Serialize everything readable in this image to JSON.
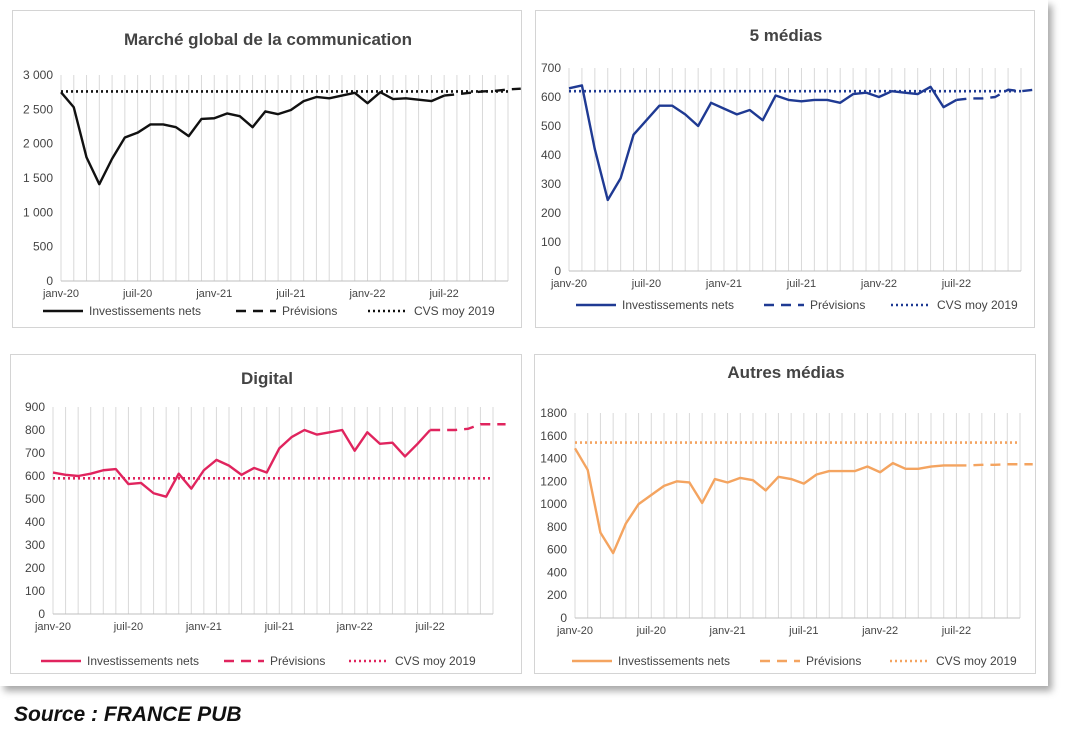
{
  "source": "Source : FRANCE PUB",
  "chart_data": [
    {
      "type": "line",
      "title": "Marché global de la communication",
      "color": "#111111",
      "x_labels": [
        "janv-20",
        "juil-20",
        "janv-21",
        "juil-21",
        "janv-22",
        "juil-22"
      ],
      "y_ticks": [
        "0",
        "500",
        "1 000",
        "1 500",
        "2 000",
        "2 500",
        "3 000"
      ],
      "ylim": [
        0,
        3000
      ],
      "n_months": 36,
      "legend": [
        "Investissements nets",
        "Prévisions",
        "CVS moy 2019"
      ],
      "series": [
        {
          "name": "Investissements nets",
          "style": "solid",
          "values": [
            2750,
            2530,
            1800,
            1410,
            1780,
            2090,
            2160,
            2280,
            2280,
            2240,
            2110,
            2360,
            2370,
            2440,
            2400,
            2240,
            2470,
            2430,
            2490,
            2620,
            2680,
            2660,
            2700,
            2740,
            2590,
            2750,
            2650,
            2660,
            2640,
            2620,
            2700
          ]
        },
        {
          "name": "Prévisions",
          "style": "dashed",
          "start": 30,
          "values": [
            2700,
            2720,
            2740,
            2760,
            2770,
            2790,
            2800
          ]
        },
        {
          "name": "CVS moy 2019",
          "style": "dotted",
          "constant": 2760
        }
      ]
    },
    {
      "type": "line",
      "title": "5 médias",
      "color": "#1f3a93",
      "x_labels": [
        "janv-20",
        "juil-20",
        "janv-21",
        "juil-21",
        "janv-22",
        "juil-22"
      ],
      "y_ticks": [
        "0",
        "100",
        "200",
        "300",
        "400",
        "500",
        "600",
        "700"
      ],
      "ylim": [
        0,
        700
      ],
      "n_months": 36,
      "legend": [
        "Investissements nets",
        "Prévisions",
        "CVS moy 2019"
      ],
      "series": [
        {
          "name": "Investissements nets",
          "style": "solid",
          "values": [
            630,
            640,
            420,
            245,
            320,
            470,
            520,
            570,
            570,
            540,
            500,
            580,
            560,
            540,
            555,
            520,
            605,
            590,
            585,
            590,
            590,
            580,
            610,
            615,
            600,
            620,
            615,
            610,
            635,
            565,
            590
          ]
        },
        {
          "name": "Prévisions",
          "style": "dashed",
          "start": 30,
          "values": [
            590,
            595,
            595,
            600,
            625,
            620,
            625
          ]
        },
        {
          "name": "CVS moy 2019",
          "style": "dotted",
          "constant": 620
        }
      ]
    },
    {
      "type": "line",
      "title": "Digital",
      "color": "#e0245e",
      "x_labels": [
        "janv-20",
        "juil-20",
        "janv-21",
        "juil-21",
        "janv-22",
        "juil-22"
      ],
      "y_ticks": [
        "0",
        "100",
        "200",
        "300",
        "400",
        "500",
        "600",
        "700",
        "800",
        "900"
      ],
      "ylim": [
        0,
        900
      ],
      "n_months": 36,
      "legend": [
        "Investissements nets",
        "Prévisions",
        "CVS moy 2019"
      ],
      "series": [
        {
          "name": "Investissements nets",
          "style": "solid",
          "values": [
            615,
            605,
            600,
            610,
            625,
            630,
            565,
            570,
            525,
            510,
            610,
            545,
            625,
            670,
            645,
            605,
            635,
            615,
            720,
            770,
            800,
            780,
            790,
            800,
            710,
            790,
            740,
            745,
            685,
            740,
            800
          ]
        },
        {
          "name": "Prévisions",
          "style": "dashed",
          "start": 30,
          "values": [
            800,
            800,
            800,
            805,
            825,
            825,
            825
          ]
        },
        {
          "name": "CVS moy 2019",
          "style": "dotted",
          "constant": 590
        }
      ]
    },
    {
      "type": "line",
      "title": "Autres médias",
      "color": "#f4a460",
      "x_labels": [
        "janv-20",
        "juil-20",
        "janv-21",
        "juil-21",
        "janv-22",
        "juil-22"
      ],
      "y_ticks": [
        "0",
        "200",
        "400",
        "600",
        "800",
        "1000",
        "1200",
        "1400",
        "1600",
        "1800"
      ],
      "ylim": [
        0,
        1800
      ],
      "n_months": 36,
      "legend": [
        "Investissements nets",
        "Prévisions",
        "CVS moy 2019"
      ],
      "series": [
        {
          "name": "Investissements nets",
          "style": "solid",
          "values": [
            1490,
            1300,
            750,
            570,
            830,
            1000,
            1080,
            1160,
            1200,
            1190,
            1010,
            1220,
            1190,
            1230,
            1210,
            1120,
            1240,
            1220,
            1180,
            1260,
            1290,
            1290,
            1290,
            1330,
            1280,
            1360,
            1310,
            1310,
            1330,
            1340,
            1340
          ]
        },
        {
          "name": "Prévisions",
          "style": "dashed",
          "start": 30,
          "values": [
            1340,
            1340,
            1345,
            1345,
            1350,
            1350,
            1350
          ]
        },
        {
          "name": "CVS moy 2019",
          "style": "dotted",
          "constant": 1540
        }
      ]
    }
  ]
}
